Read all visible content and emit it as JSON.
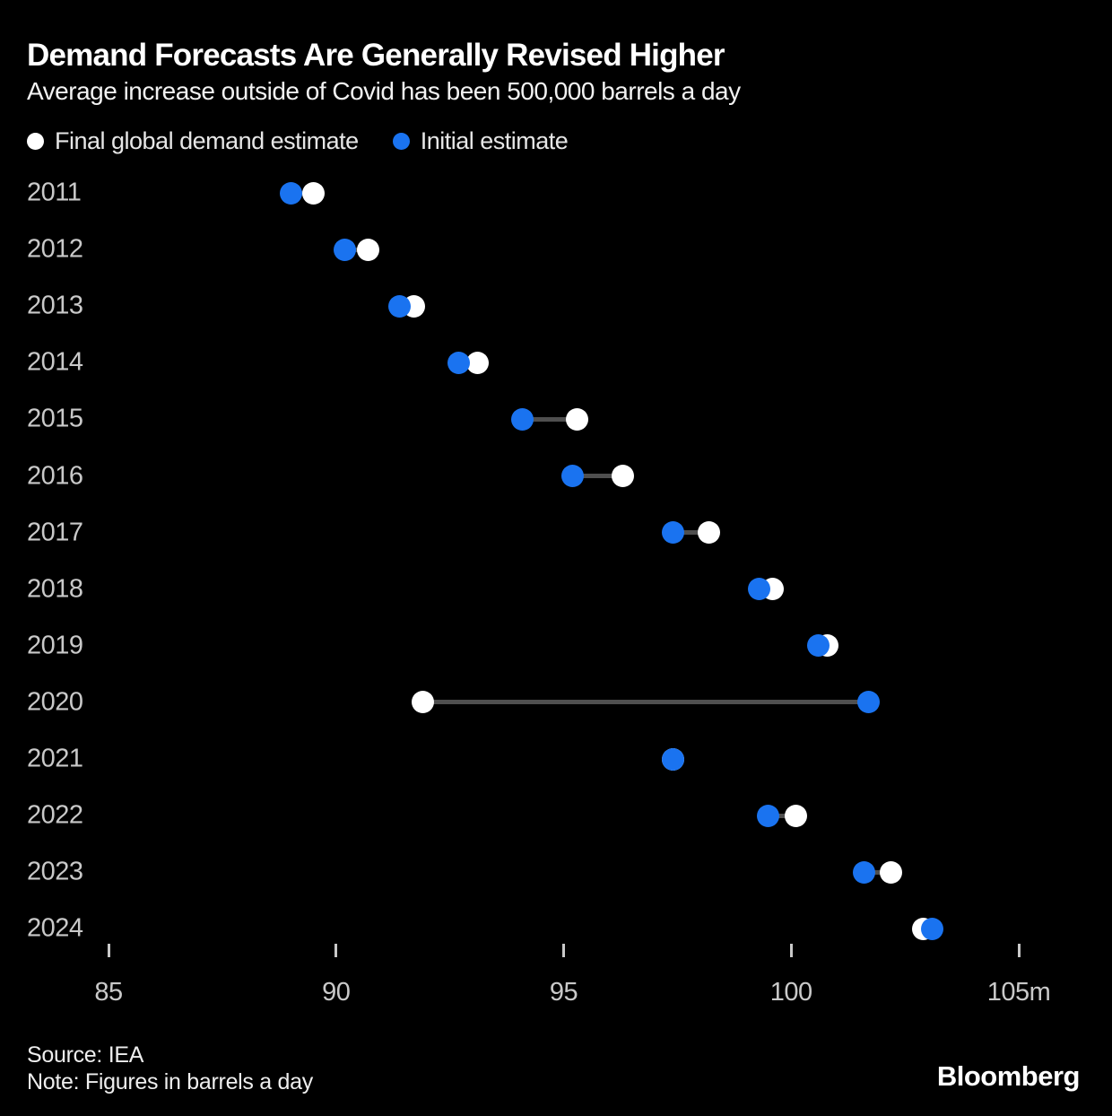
{
  "header": {
    "title": "Demand Forecasts Are Generally Revised Higher",
    "subtitle": "Average increase outside of Covid has been 500,000 barrels a day"
  },
  "legend": {
    "final": {
      "label": "Final global demand estimate",
      "color": "#ffffff"
    },
    "initial": {
      "label": "Initial estimate",
      "color": "#1a73f0"
    }
  },
  "chart_data": {
    "type": "dumbbell",
    "title": "Demand Forecasts Are Generally Revised Higher",
    "subtitle": "Average increase outside of Covid has been 500,000 barrels a day",
    "unit": "million barrels a day",
    "categories": [
      "2011",
      "2012",
      "2013",
      "2014",
      "2015",
      "2016",
      "2017",
      "2018",
      "2019",
      "2020",
      "2021",
      "2022",
      "2023",
      "2024"
    ],
    "series": [
      {
        "name": "Initial estimate",
        "color": "#1a73f0",
        "values": [
          89.0,
          90.2,
          91.4,
          92.7,
          94.1,
          95.2,
          97.4,
          99.3,
          100.6,
          101.7,
          97.4,
          99.5,
          101.6,
          103.1
        ]
      },
      {
        "name": "Final global demand estimate",
        "color": "#ffffff",
        "values": [
          89.5,
          90.7,
          91.7,
          93.1,
          95.3,
          96.3,
          98.2,
          99.6,
          100.8,
          91.9,
          97.4,
          100.1,
          102.2,
          102.9
        ]
      }
    ],
    "x_axis": {
      "ticks": [
        85,
        90,
        95,
        100,
        105
      ],
      "tick_labels": [
        "85",
        "90",
        "95",
        "100",
        "105m"
      ],
      "range": [
        85,
        107
      ],
      "tick_color": "#c9c9c9"
    },
    "connector_color": "#4f4f4f",
    "background": "#000000",
    "legend_position": "top"
  },
  "footer": {
    "source": "Source: IEA",
    "note": "Note: Figures in barrels a day",
    "brand": "Bloomberg"
  }
}
